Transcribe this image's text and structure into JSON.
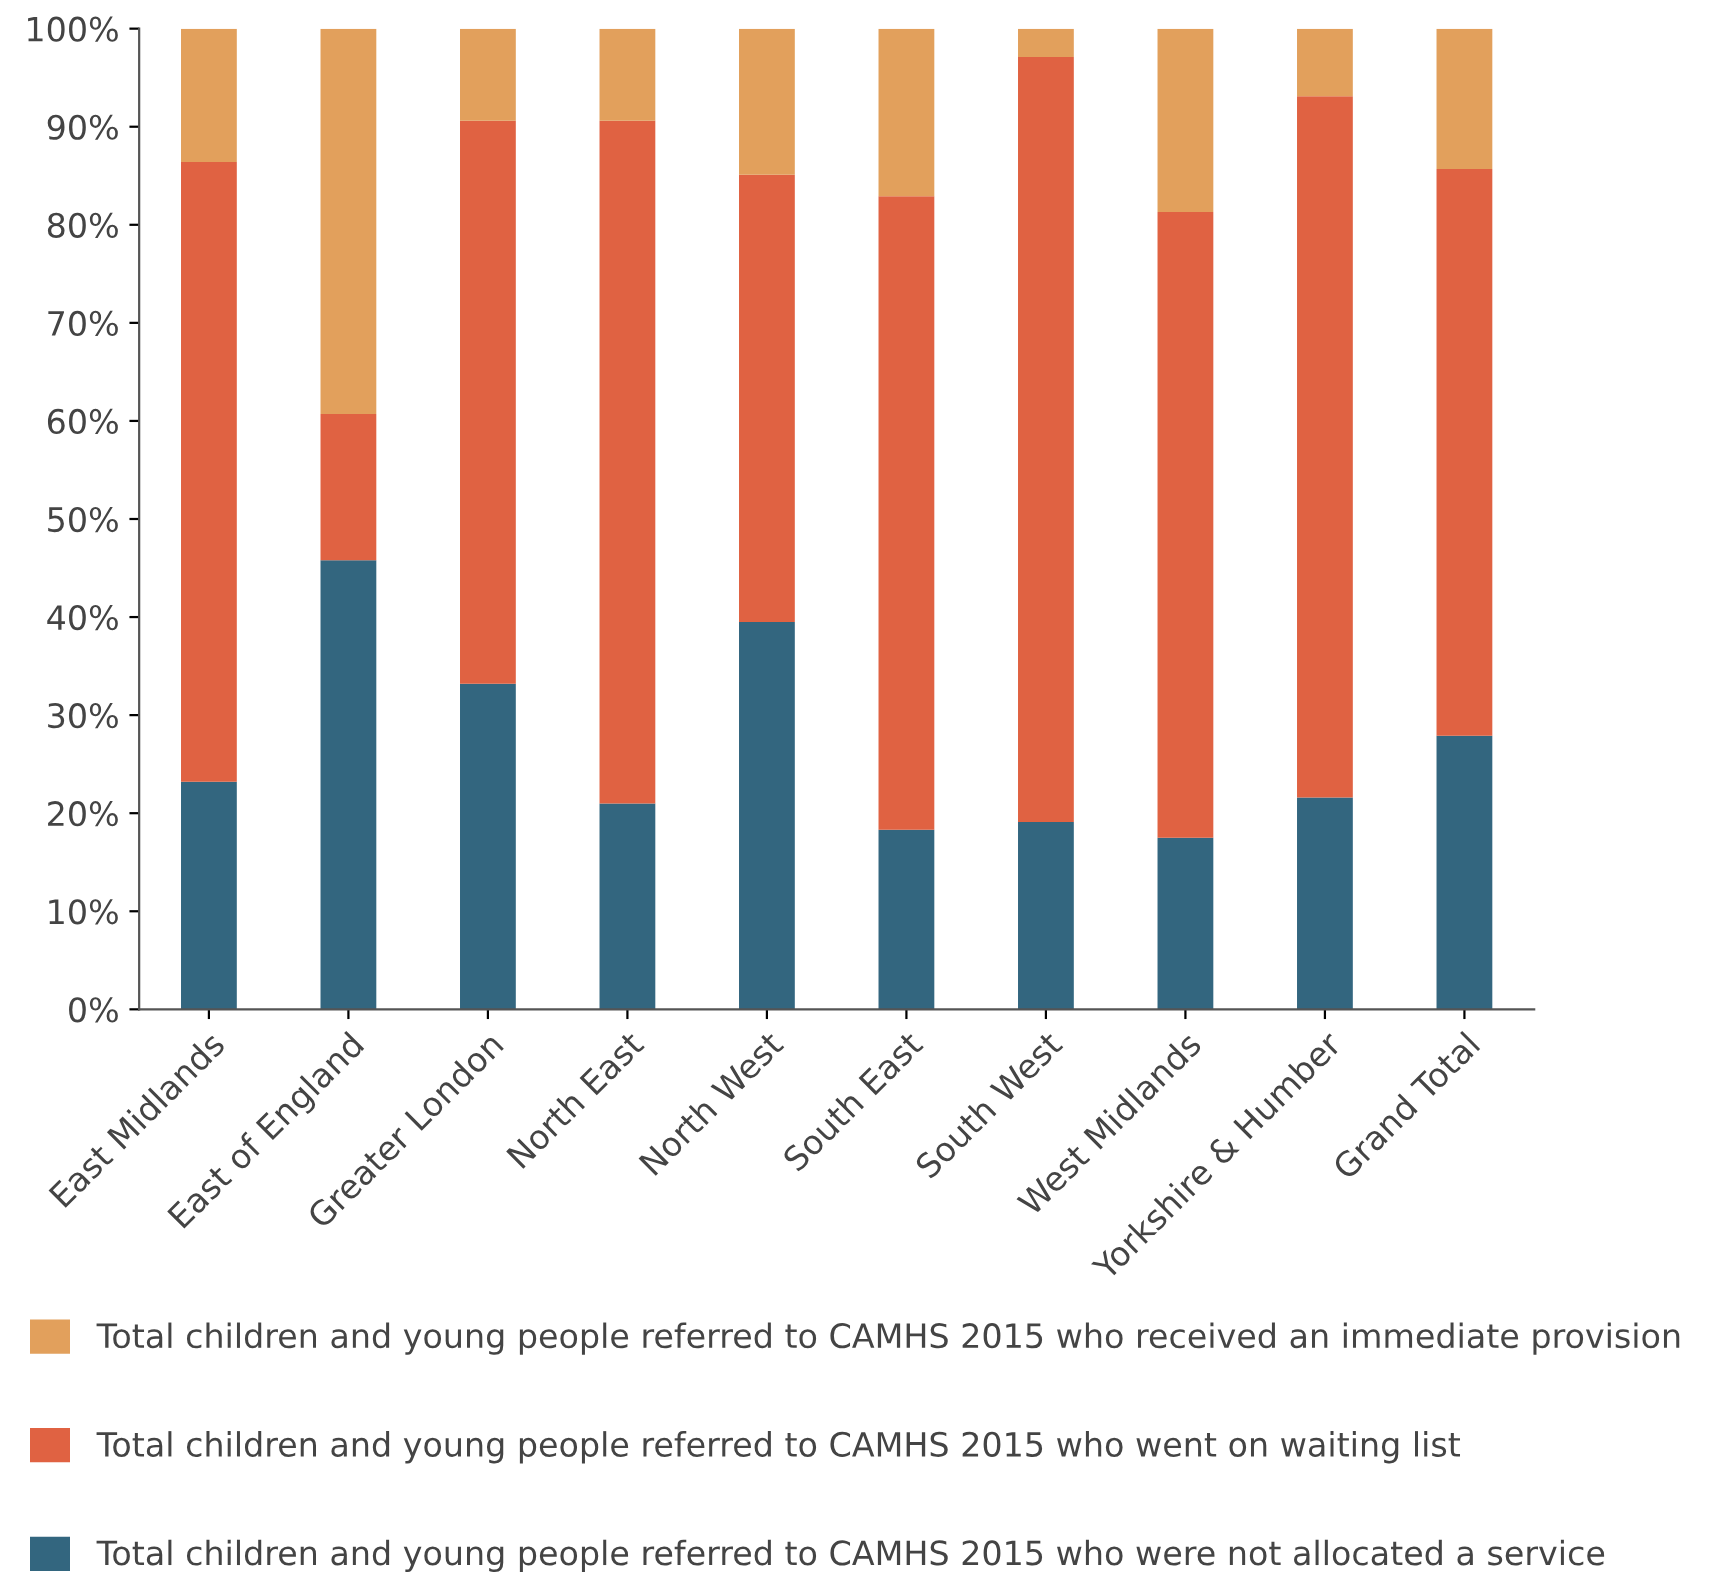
{
  "chart_data": {
    "type": "bar",
    "stacked": true,
    "categories": [
      "East Midlands",
      "East of England",
      "Greater London",
      "North East",
      "North West",
      "South East",
      "South West",
      "West Midlands",
      "Yorkshire & Humber",
      "Grand Total"
    ],
    "series": [
      {
        "name": "Total children and young people referred to CAMHS 2015 who were not allocated a service",
        "color": "#33667f",
        "values": [
          23.2,
          45.8,
          33.2,
          21.0,
          39.5,
          18.3,
          19.1,
          17.5,
          21.6,
          27.9
        ]
      },
      {
        "name": "Total children and young people referred to CAMHS 2015 who went on waiting list",
        "color": "#e06242",
        "values": [
          63.2,
          14.9,
          57.4,
          69.6,
          45.6,
          64.6,
          78.0,
          63.8,
          71.5,
          57.8
        ]
      },
      {
        "name": "Total children and young people referred to CAMHS 2015 who received an immediate provision",
        "color": "#e2a05c",
        "values": [
          13.6,
          39.3,
          9.4,
          9.4,
          14.9,
          17.1,
          2.9,
          18.7,
          6.9,
          14.3
        ]
      }
    ],
    "ylim": [
      0,
      100
    ],
    "yticks": [
      {
        "value": 0,
        "label": "0%"
      },
      {
        "value": 10,
        "label": "10%"
      },
      {
        "value": 20,
        "label": "20%"
      },
      {
        "value": 30,
        "label": "30%"
      },
      {
        "value": 40,
        "label": "40%"
      },
      {
        "value": 50,
        "label": "50%"
      },
      {
        "value": 60,
        "label": "60%"
      },
      {
        "value": 70,
        "label": "70%"
      },
      {
        "value": 80,
        "label": "80%"
      },
      {
        "value": 90,
        "label": "90%"
      },
      {
        "value": 100,
        "label": "100%"
      }
    ],
    "grid": false,
    "legend": "bottom"
  }
}
